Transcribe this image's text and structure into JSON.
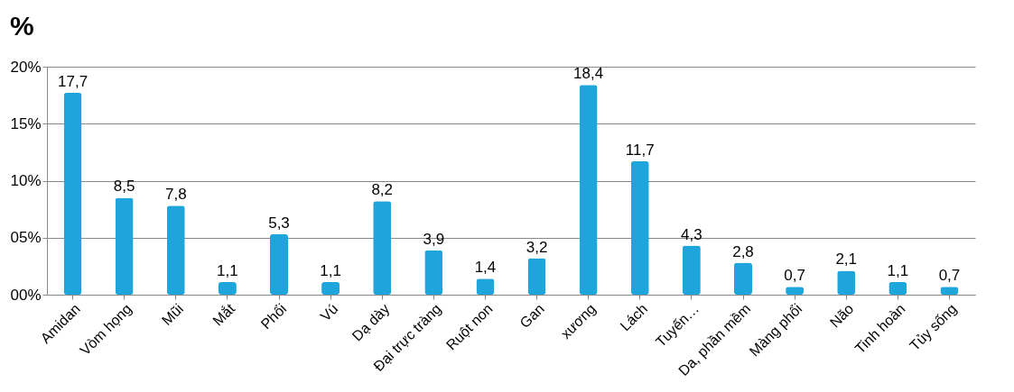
{
  "chart_data": {
    "type": "bar",
    "title": "%",
    "categories": [
      "Amidan",
      "Vòm họng",
      "Mũi",
      "Mắt",
      "Phổi",
      "Vú",
      "Dạ dày",
      "Đại trực tràng",
      "Ruột non",
      "Gan",
      "xương",
      "Lách",
      "Tuyến…",
      "Da, phần mềm",
      "Màng phổi",
      "Não",
      "Tinh hoàn",
      "Tủy sống"
    ],
    "values": [
      17.7,
      8.5,
      7.8,
      1.1,
      5.3,
      1.1,
      8.2,
      3.9,
      1.4,
      3.2,
      18.4,
      11.7,
      4.3,
      2.8,
      0.7,
      2.1,
      1.1,
      0.7
    ],
    "value_labels": [
      "17,7",
      "8,5",
      "7,8",
      "1,1",
      "5,3",
      "1,1",
      "8,2",
      "3,9",
      "1,4",
      "3,2",
      "18,4",
      "11,7",
      "4,3",
      "2,8",
      "0,7",
      "2,1",
      "1,1",
      "0,7"
    ],
    "color": "#1ea5dc",
    "ylim": [
      0,
      20
    ],
    "yticks": [
      {
        "value": 0,
        "label": "00%"
      },
      {
        "value": 5,
        "label": "05%"
      },
      {
        "value": 10,
        "label": "10%"
      },
      {
        "value": 15,
        "label": "15%"
      },
      {
        "value": 20,
        "label": "20%"
      }
    ],
    "grid": "y"
  }
}
